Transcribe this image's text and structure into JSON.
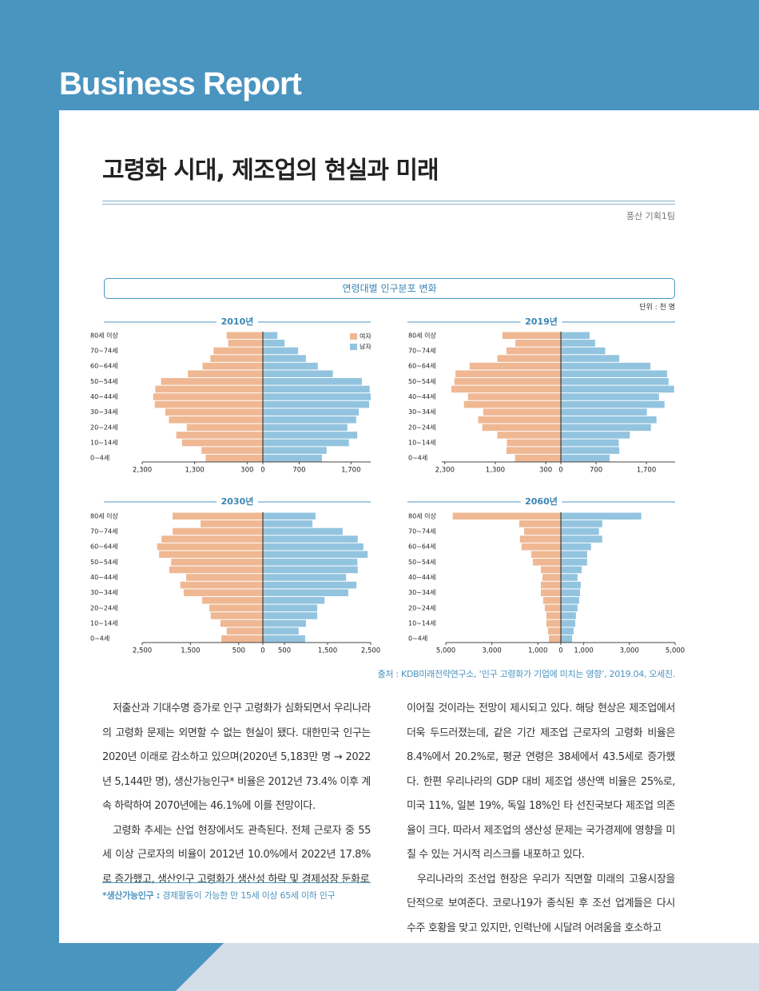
{
  "header": {
    "brand": "Business Report"
  },
  "article": {
    "title": "고령화 시대, 제조업의 현실과 미래",
    "author": "풍산 기획1팀",
    "left_column": [
      "저출산과 기대수명 증가로 인구 고령화가 심화되면서 우리나라의 고령화 문제는 외면할 수 없는 현실이 됐다. 대한민국 인구는 2020년 이래로 감소하고 있으며(2020년 5,183만 명 → 2022년 5,144만 명), 생산가능인구* 비율은 2012년 73.4% 이후 계속 하락하여 2070년에는 46.1%에 이를 전망이다.",
      "고령화 추세는 산업 현장에서도 관측된다. 전체 근로자 중 55세 이상 근로자의 비율이 2012년 10.0%에서 2022년 17.8%로 증가했고, 생산인구 고령화가 생산성 하락 및 경제성장 둔화로"
    ],
    "right_column": [
      "이어질 것이라는 전망이 제시되고 있다. 해당 현상은 제조업에서 더욱 두드러졌는데, 같은 기간 제조업 근로자의 고령화 비율은 8.4%에서 20.2%로, 평균 연령은 38세에서 43.5세로 증가했다. 한편 우리나라의 GDP 대비 제조업 생산액 비율은 25%로, 미국 11%, 일본 19%, 독일 18%인 타 선진국보다 제조업 의존율이 크다. 따라서 제조업의 생산성 문제는 국가경제에 영향을 미칠 수 있는 거시적 리스크를 내포하고 있다.",
      "우리나라의 조선업 현장은 우리가 직면할 미래의 고용시장을 단적으로 보여준다. 코로나19가 종식된 후 조선 업계들은 다시 수주 호황을 맞고 있지만, 인력난에 시달려 어려움을 호소하고"
    ],
    "footnote": {
      "term": "*생산가능인구 :",
      "text": "경제활동이 가능한 만 15세 이상 65세 이하 인구"
    }
  },
  "figure": {
    "title": "연령대별 인구분포 변화",
    "unit": "단위 : 천 명",
    "source": "출처 : KDB미래전략연구소, ‘인구 고령화가 기업에 미치는 영향’, 2019.04, 오세진."
  },
  "chart_data": [
    {
      "type": "pyramid",
      "title": "2010년",
      "legend": "upper right",
      "categories": [
        "0~4세",
        null,
        "10~14세",
        null,
        "20~24세",
        null,
        "30~34세",
        null,
        "40~44세",
        null,
        "50~54세",
        null,
        "60~64세",
        null,
        "70~74세",
        null,
        "80세 이상"
      ],
      "series": [
        {
          "name": "여자",
          "color": "#efb893",
          "values": [
            1090,
            1170,
            1540,
            1650,
            1450,
            1790,
            1860,
            2060,
            2090,
            2050,
            1940,
            1430,
            1150,
            1000,
            940,
            660,
            690
          ]
        },
        {
          "name": "남자",
          "color": "#93c4df",
          "values": [
            1140,
            1230,
            1660,
            1820,
            1630,
            1800,
            1850,
            2050,
            2080,
            2060,
            1910,
            1350,
            1060,
            830,
            680,
            420,
            280
          ]
        }
      ],
      "xlim": [
        -2300,
        2080
      ],
      "xticks": [
        {
          "value": -2300,
          "label": "2,300"
        },
        {
          "value": -1300,
          "label": "1,300"
        },
        {
          "value": -300,
          "label": "300"
        },
        0,
        700,
        {
          "value": 1700,
          "label": "1,700"
        }
      ]
    },
    {
      "type": "pyramid",
      "title": "2019년",
      "categories": [
        "0~4세",
        null,
        "10~14세",
        null,
        "20~24세",
        null,
        "30~34세",
        null,
        "40~44세",
        null,
        "50~54세",
        null,
        "60~64세",
        null,
        "70~74세",
        null,
        "80세 이상"
      ],
      "series": [
        {
          "color": "#efb893",
          "values": [
            910,
            1080,
            1070,
            1260,
            1560,
            1640,
            1540,
            1920,
            1840,
            2170,
            2110,
            2090,
            1810,
            1260,
            1080,
            900,
            1160
          ]
        },
        {
          "color": "#93c4df",
          "values": [
            970,
            1160,
            1150,
            1370,
            1790,
            1900,
            1710,
            2060,
            1950,
            2250,
            2140,
            2110,
            1780,
            1160,
            880,
            680,
            570
          ]
        }
      ],
      "xlim": [
        -2360,
        2270
      ],
      "xticks": [
        {
          "value": -2300,
          "label": "2,300"
        },
        {
          "value": -1300,
          "label": "1,300"
        },
        {
          "value": -300,
          "label": "300"
        },
        0,
        700,
        {
          "value": 1700,
          "label": "1,700"
        }
      ]
    },
    {
      "type": "pyramid",
      "title": "2030년",
      "categories": [
        "0~4세",
        null,
        "10~14세",
        null,
        "20~24세",
        null,
        "30~34세",
        null,
        "40~44세",
        null,
        "50~54세",
        null,
        "60~64세",
        null,
        "70~74세",
        null,
        "80세 이상"
      ],
      "series": [
        {
          "color": "#efb893",
          "values": [
            860,
            750,
            880,
            1080,
            1110,
            1260,
            1640,
            1710,
            1590,
            1940,
            1900,
            2150,
            2190,
            2100,
            1870,
            1290,
            1870
          ]
        },
        {
          "color": "#93c4df",
          "values": [
            980,
            830,
            1000,
            1260,
            1260,
            1430,
            1980,
            2170,
            1930,
            2200,
            2190,
            2430,
            2330,
            2200,
            1850,
            1150,
            1220
          ]
        }
      ],
      "xlim": [
        -2500,
        2500
      ],
      "xticks": [
        {
          "value": -2500,
          "label": "2,500"
        },
        {
          "value": -1500,
          "label": "1,500"
        },
        {
          "value": -500,
          "label": "500"
        },
        0,
        500,
        {
          "value": 1500,
          "label": "1,500"
        },
        {
          "value": 2500,
          "label": "2,500"
        }
      ]
    },
    {
      "type": "pyramid",
      "title": "2060년",
      "categories": [
        "0~4세",
        null,
        "10~14세",
        null,
        "20~24세",
        null,
        "30~34세",
        null,
        "40~44세",
        null,
        "50~54세",
        null,
        "60~64세",
        null,
        "70~74세",
        null,
        "80세 이상"
      ],
      "series": [
        {
          "color": "#efb893",
          "values": [
            520,
            560,
            630,
            630,
            700,
            770,
            870,
            870,
            800,
            870,
            1220,
            1290,
            1710,
            1780,
            1600,
            1810,
            4700
          ]
        },
        {
          "color": "#93c4df",
          "values": [
            490,
            560,
            630,
            660,
            730,
            800,
            840,
            870,
            730,
            910,
            1150,
            1150,
            1320,
            1810,
            1670,
            1810,
            3520
          ]
        }
      ],
      "xlim": [
        -5000,
        5000
      ],
      "xticks": [
        {
          "value": -5000,
          "label": "5,000"
        },
        {
          "value": -3000,
          "label": "3,000"
        },
        {
          "value": -1000,
          "label": "1,000"
        },
        0,
        {
          "value": 1000,
          "label": "1,000"
        },
        {
          "value": 3000,
          "label": "3,000"
        },
        {
          "value": 5000,
          "label": "5,000"
        }
      ]
    }
  ]
}
